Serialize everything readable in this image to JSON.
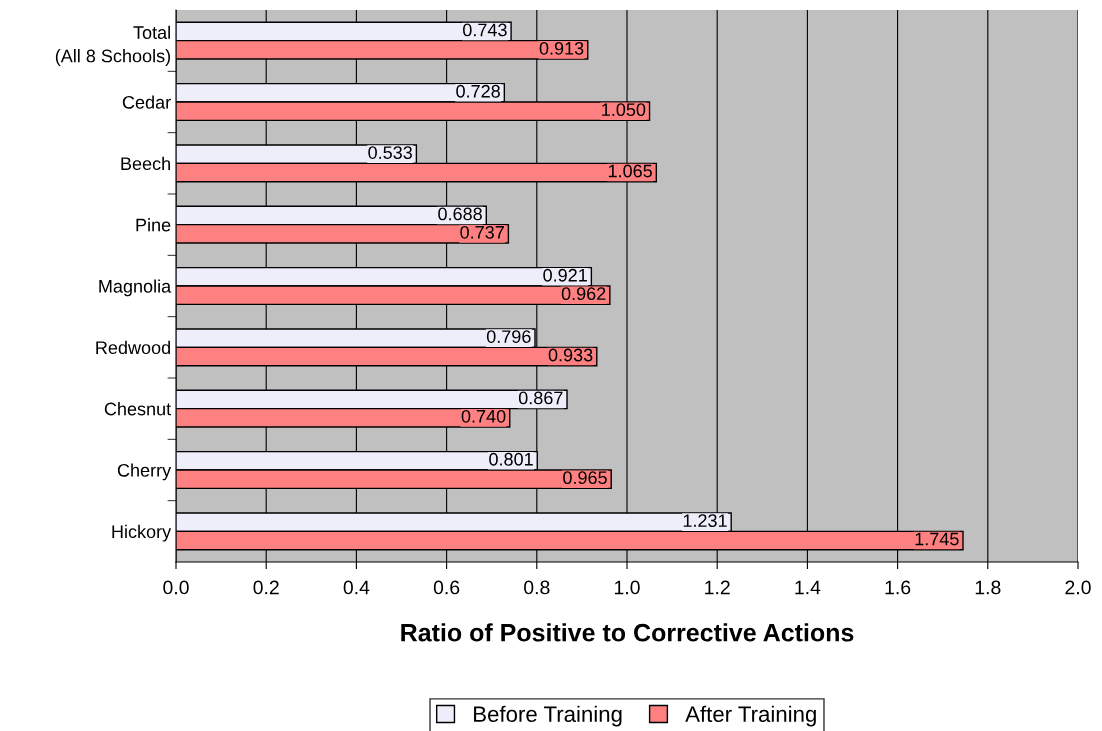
{
  "chart_data": {
    "type": "bar",
    "orientation": "horizontal",
    "xlabel": "Ratio of Positive to Corrective Actions",
    "categories": [
      "Total\n(All 8 Schools)",
      "Cedar",
      "Beech",
      "Pine",
      "Magnolia",
      "Redwood",
      "Chesnut",
      "Cherry",
      "Hickory"
    ],
    "series": [
      {
        "name": "Before Training",
        "color": "#eeeefa",
        "values": [
          0.743,
          0.728,
          0.533,
          0.688,
          0.921,
          0.796,
          0.867,
          0.801,
          1.231
        ],
        "value_labels": [
          "0.743",
          "0.728",
          "0.533",
          "0.688",
          "0.921",
          "0.796",
          "0.867",
          "0.801",
          "1.231"
        ]
      },
      {
        "name": "After Training",
        "color": "#ff8080",
        "values": [
          0.913,
          1.05,
          1.065,
          0.737,
          0.962,
          0.933,
          0.74,
          0.965,
          1.745
        ],
        "value_labels": [
          "0.913",
          "1.050",
          "1.065",
          "0.737",
          "0.962",
          "0.933",
          "0.740",
          "0.965",
          "1.745"
        ]
      }
    ],
    "xlim": [
      0,
      2
    ],
    "xticks": [
      {
        "value": 0,
        "label": "0.0"
      },
      {
        "value": 0.2,
        "label": "0.2"
      },
      {
        "value": 0.4,
        "label": "0.4"
      },
      {
        "value": 0.6,
        "label": "0.6"
      },
      {
        "value": 0.8,
        "label": "0.8"
      },
      {
        "value": 1.0,
        "label": "1.0"
      },
      {
        "value": 1.2,
        "label": "1.2"
      },
      {
        "value": 1.4,
        "label": "1.4"
      },
      {
        "value": 1.6,
        "label": "1.6"
      },
      {
        "value": 1.8,
        "label": "1.8"
      },
      {
        "value": 2.0,
        "label": "2.0"
      }
    ],
    "grid": "x",
    "legend": "bottom"
  }
}
